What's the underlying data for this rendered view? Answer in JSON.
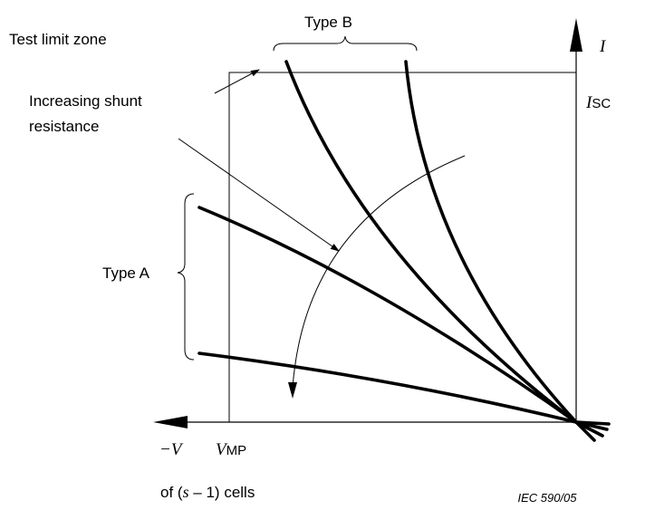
{
  "labels": {
    "test_limit_zone": "Test limit zone",
    "increasing_shunt_line1": "Increasing shunt",
    "increasing_shunt_line2": "resistance",
    "type_a": "Type A",
    "type_b": "Type B",
    "current_axis": "I",
    "isc_main": "I",
    "isc_sub": "SC",
    "neg_voltage": "−V",
    "vmp_main": "V",
    "vmp_sub": "MP",
    "cells_prefix": "of (",
    "cells_var": "s",
    "cells_suffix": " – 1) cells",
    "reference": "IEC   590/05"
  },
  "groups": {
    "type_a": {
      "curve_count": 2
    },
    "type_b": {
      "curve_count": 2
    }
  },
  "colors": {
    "ink": "#000000",
    "background": "#ffffff"
  }
}
